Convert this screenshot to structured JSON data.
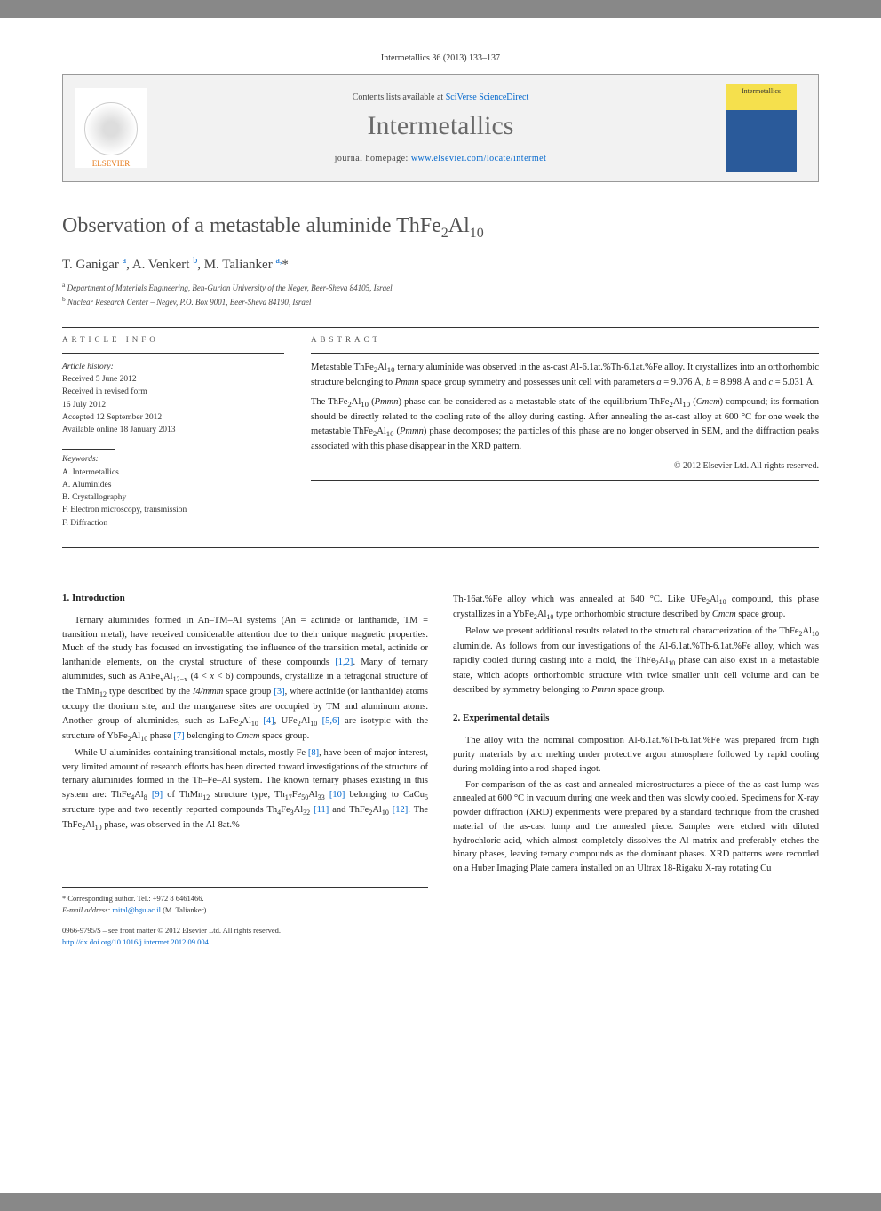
{
  "top_reference": "Intermetallics 36 (2013) 133–137",
  "header": {
    "contents_prefix": "Contents lists available at ",
    "contents_link": "SciVerse ScienceDirect",
    "journal_name": "Intermetallics",
    "homepage_prefix": "journal homepage: ",
    "homepage_url": "www.elsevier.com/locate/intermet",
    "publisher": "ELSEVIER",
    "cover_label": "Intermetallics"
  },
  "title_html": "Observation of a metastable aluminide ThFe<sub>2</sub>Al<sub>10</sub>",
  "authors_html": "T. Ganigar <sup>a</sup>, A. Venkert <sup>b</sup>, M. Talianker <sup>a,</sup>*",
  "affiliations": [
    {
      "sup": "a",
      "text": "Department of Materials Engineering, Ben-Gurion University of the Negev, Beer-Sheva 84105, Israel"
    },
    {
      "sup": "b",
      "text": "Nuclear Research Center – Negev, P.O. Box 9001, Beer-Sheva 84190, Israel"
    }
  ],
  "article_info": {
    "label": "ARTICLE INFO",
    "history_label": "Article history:",
    "history": [
      "Received 5 June 2012",
      "Received in revised form",
      "16 July 2012",
      "Accepted 12 September 2012",
      "Available online 18 January 2013"
    ],
    "keywords_label": "Keywords:",
    "keywords": [
      "A. Intermetallics",
      "A. Aluminides",
      "B. Crystallography",
      "F. Electron microscopy, transmission",
      "F. Diffraction"
    ]
  },
  "abstract": {
    "label": "ABSTRACT",
    "paragraphs_html": [
      "Metastable ThFe<sub>2</sub>Al<sub>10</sub> ternary aluminide was observed in the as-cast Al-6.1at.%Th-6.1at.%Fe alloy. It crystallizes into an orthorhombic structure belonging to <i>Pmmn</i> space group symmetry and possesses unit cell with parameters <i>a</i> = 9.076 Å, <i>b</i> = 8.998 Å and <i>c</i> = 5.031 Å.",
      "The ThFe<sub>2</sub>Al<sub>10</sub> (<i>Pmmn</i>) phase can be considered as a metastable state of the equilibrium ThFe<sub>2</sub>Al<sub>10</sub> (<i>Cmcm</i>) compound; its formation should be directly related to the cooling rate of the alloy during casting. After annealing the as-cast alloy at 600 °C for one week the metastable ThFe<sub>2</sub>Al<sub>10</sub> (<i>Pmmn</i>) phase decomposes; the particles of this phase are no longer observed in SEM, and the diffraction peaks associated with this phase disappear in the XRD pattern."
    ],
    "copyright": "© 2012 Elsevier Ltd. All rights reserved."
  },
  "body": {
    "section1_title": "1. Introduction",
    "col1_html": [
      "Ternary aluminides formed in An–TM–Al systems (An = actinide or lanthanide, TM = transition metal), have received considerable attention due to their unique magnetic properties. Much of the study has focused on investigating the influence of the transition metal, actinide or lanthanide elements, on the crystal structure of these compounds <a href='#'>[1,2]</a>. Many of ternary aluminides, such as AnFe<sub>x</sub>Al<sub>12−x</sub> (4 < <i>x</i> < 6) compounds, crystallize in a tetragonal structure of the ThMn<sub>12</sub> type described by the <i>I4/mmm</i> space group <a href='#'>[3]</a>, where actinide (or lanthanide) atoms occupy the thorium site, and the manganese sites are occupied by TM and aluminum atoms. Another group of aluminides, such as LaFe<sub>2</sub>Al<sub>10</sub> <a href='#'>[4]</a>, UFe<sub>2</sub>Al<sub>10</sub> <a href='#'>[5,6]</a> are isotypic with the structure of YbFe<sub>2</sub>Al<sub>10</sub> phase <a href='#'>[7]</a> belonging to <i>Cmcm</i> space group.",
      "While U-aluminides containing transitional metals, mostly Fe <a href='#'>[8]</a>, have been of major interest, very limited amount of research efforts has been directed toward investigations of the structure of ternary aluminides formed in the Th–Fe–Al system. The known ternary phases existing in this system are: ThFe<sub>4</sub>Al<sub>8</sub> <a href='#'>[9]</a> of ThMn<sub>12</sub> structure type, Th<sub>17</sub>Fe<sub>50</sub>Al<sub>33</sub> <a href='#'>[10]</a> belonging to CaCu<sub>5</sub> structure type and two recently reported compounds Th<sub>4</sub>Fe<sub>3</sub>Al<sub>32</sub> <a href='#'>[11]</a> and ThFe<sub>2</sub>Al<sub>10</sub> <a href='#'>[12]</a>. The ThFe<sub>2</sub>Al<sub>10</sub> phase, was observed in the Al-8at.%"
    ],
    "col2_html": [
      "Th-16at.%Fe alloy which was annealed at 640 °C. Like UFe<sub>2</sub>Al<sub>10</sub> compound, this phase crystallizes in a YbFe<sub>2</sub>Al<sub>10</sub> type orthorhombic structure described by <i>Cmcm</i> space group.",
      "Below we present additional results related to the structural characterization of the ThFe<sub>2</sub>Al<sub>10</sub> aluminide. As follows from our investigations of the Al-6.1at.%Th-6.1at.%Fe alloy, which was rapidly cooled during casting into a mold, the ThFe<sub>2</sub>Al<sub>10</sub> phase can also exist in a metastable state, which adopts orthorhombic structure with twice smaller unit cell volume and can be described by symmetry belonging to <i>Pmmn</i> space group."
    ],
    "section2_title": "2. Experimental details",
    "col2b_html": [
      "The alloy with the nominal composition Al-6.1at.%Th-6.1at.%Fe was prepared from high purity materials by arc melting under protective argon atmosphere followed by rapid cooling during molding into a rod shaped ingot.",
      "For comparison of the as-cast and annealed microstructures a piece of the as-cast lump was annealed at 600 °C in vacuum during one week and then was slowly cooled. Specimens for X-ray powder diffraction (XRD) experiments were prepared by a standard technique from the crushed material of the as-cast lump and the annealed piece. Samples were etched with diluted hydrochloric acid, which almost completely dissolves the Al matrix and preferably etches the binary phases, leaving ternary compounds as the dominant phases. XRD patterns were recorded on a Huber Imaging Plate camera installed on an Ultrax 18-Rigaku X-ray rotating Cu"
    ]
  },
  "footer": {
    "corresponding": "* Corresponding author. Tel.: +972 8 6461466.",
    "email_label": "E-mail address:",
    "email": "mital@bgu.ac.il",
    "email_who": "(M. Talianker).",
    "issn": "0966-9795/$ – see front matter © 2012 Elsevier Ltd. All rights reserved.",
    "doi": "http://dx.doi.org/10.1016/j.intermet.2012.09.004"
  },
  "colors": {
    "link": "#0066cc",
    "title_grey": "#515151",
    "text": "#222222",
    "border": "#999999",
    "header_bg": "#f2f2f2",
    "elsevier_orange": "#e67817"
  }
}
